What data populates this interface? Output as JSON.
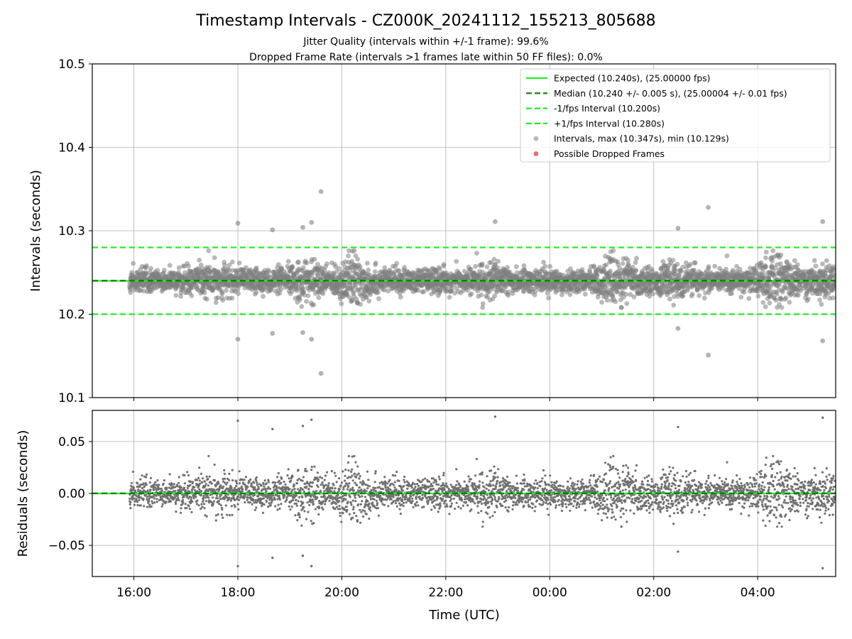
{
  "chart_data": [
    {
      "type": "scatter",
      "title": "Timestamp Intervals - CZ000K_20241112_155213_805688",
      "subtitle_1": "Jitter Quality (intervals within +/-1 frame): 99.6%",
      "subtitle_2": "Dropped Frame Rate (intervals >1 frames late within 50 FF files): 0.0%",
      "xlabel": "",
      "ylabel": "Intervals (seconds)",
      "x_axis": "time",
      "xlim": [
        "15:12",
        "05:30"
      ],
      "ylim": [
        10.1,
        10.5
      ],
      "yticks": [
        "10.1",
        "10.2",
        "10.3",
        "10.4",
        "10.5"
      ],
      "grid": true,
      "legend_position": "top-right",
      "lines": [
        {
          "name": "Expected (10.240s), (25.00000 fps)",
          "y": 10.24,
          "style": "solid",
          "color": "#22ee22"
        },
        {
          "name": "Median (10.240 +/- 0.005 s), (25.00004 +/- 0.01 fps)",
          "y": 10.2401,
          "style": "dashed",
          "color": "#0a7a0a"
        },
        {
          "name": "-1/fps Interval (10.200s)",
          "y": 10.2,
          "style": "dashed",
          "color": "#22ee22"
        },
        {
          "name": "+1/fps Interval (10.280s)",
          "y": 10.28,
          "style": "dashed",
          "color": "#22ee22"
        }
      ],
      "series": [
        {
          "name": "Intervals, max (10.347s), min (10.129s)",
          "color": "#808080",
          "center": 10.24,
          "sd": 0.007,
          "count": 3800,
          "outliers": [
            [
              "18:00",
              10.309
            ],
            [
              "18:00",
              10.17
            ],
            [
              "18:40",
              10.301
            ],
            [
              "18:40",
              10.177
            ],
            [
              "19:15",
              10.304
            ],
            [
              "19:15",
              10.178
            ],
            [
              "19:25",
              10.31
            ],
            [
              "19:25",
              10.17
            ],
            [
              "19:36",
              10.347
            ],
            [
              "19:36",
              10.129
            ],
            [
              "22:57",
              10.311
            ],
            [
              "02:28",
              10.303
            ],
            [
              "02:28",
              10.183
            ],
            [
              "03:03",
              10.328
            ],
            [
              "03:03",
              10.151
            ],
            [
              "05:15",
              10.311
            ],
            [
              "05:15",
              10.168
            ]
          ]
        },
        {
          "name": "Possible Dropped Frames",
          "color": "#ee4444",
          "points": []
        }
      ]
    },
    {
      "type": "scatter",
      "xlabel": "Time (UTC)",
      "ylabel": "Residuals (seconds)",
      "x_axis": "time",
      "xlim": [
        "15:12",
        "05:30"
      ],
      "ylim": [
        -0.08,
        0.08
      ],
      "xticks": [
        "16:00",
        "18:00",
        "20:00",
        "22:00",
        "00:00",
        "02:00",
        "04:00"
      ],
      "yticks": [
        "0.05",
        "0.00",
        "−0.05"
      ],
      "grid": true,
      "lines": [
        {
          "y": 0.0,
          "style": "solid",
          "color": "#22ee22"
        },
        {
          "y": 0.0001,
          "style": "dashed",
          "color": "#0a7a0a"
        }
      ],
      "series": [
        {
          "color": "#707070",
          "center": 0.0,
          "sd": 0.007,
          "count": 3800,
          "outliers": [
            [
              "18:00",
              0.07
            ],
            [
              "18:00",
              -0.07
            ],
            [
              "18:40",
              0.062
            ],
            [
              "18:40",
              -0.062
            ],
            [
              "19:15",
              0.065
            ],
            [
              "19:15",
              -0.06
            ],
            [
              "19:25",
              0.071
            ],
            [
              "19:25",
              -0.07
            ],
            [
              "22:57",
              0.074
            ],
            [
              "02:28",
              0.064
            ],
            [
              "02:28",
              -0.056
            ],
            [
              "05:15",
              0.073
            ],
            [
              "05:15",
              -0.072
            ]
          ]
        }
      ]
    }
  ]
}
